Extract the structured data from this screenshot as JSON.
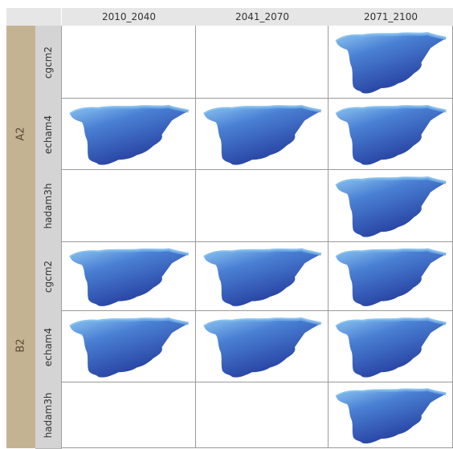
{
  "columns": [
    "2010_2040",
    "2041_2070",
    "2071_2100"
  ],
  "scenarios": [
    {
      "label": "A2",
      "models": [
        {
          "label": "cgcm2",
          "maps": [
            false,
            false,
            true
          ]
        },
        {
          "label": "echam4",
          "maps": [
            true,
            true,
            true
          ]
        },
        {
          "label": "hadam3h",
          "maps": [
            false,
            false,
            true
          ]
        }
      ]
    },
    {
      "label": "B2",
      "models": [
        {
          "label": "cgcm2",
          "maps": [
            true,
            true,
            true
          ]
        },
        {
          "label": "echam4",
          "maps": [
            true,
            true,
            true
          ]
        },
        {
          "label": "hadam3h",
          "maps": [
            false,
            false,
            true
          ]
        }
      ]
    }
  ],
  "colors": {
    "map_light": "#6fb0e8",
    "map_mid": "#3d6fc8",
    "map_dark": "#243c9c",
    "scenario_band": "#c4b393",
    "model_band": "#d4d4d4"
  }
}
